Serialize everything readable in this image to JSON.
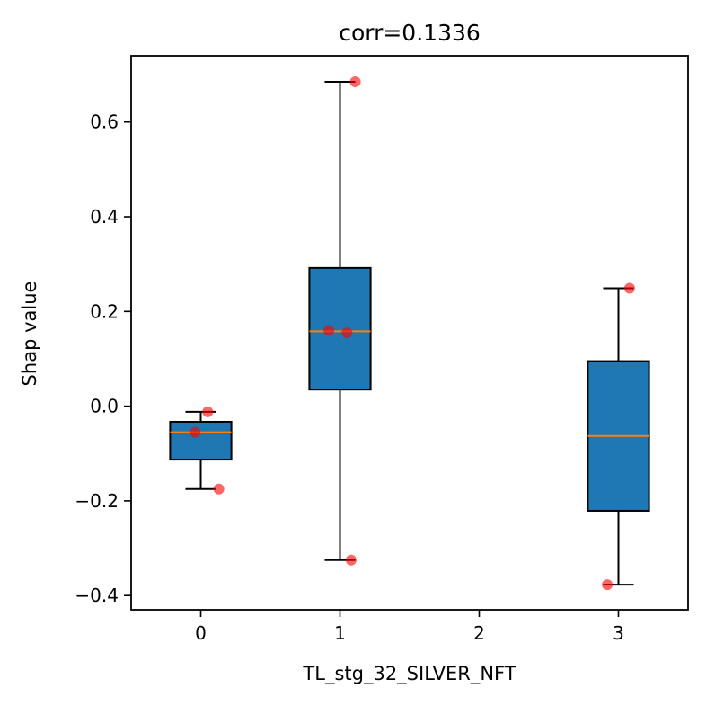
{
  "chart_data": {
    "type": "box",
    "title": "corr=0.1336",
    "xlabel": "TL_stg_32_SILVER_NFT",
    "ylabel": "Shap value",
    "xlim": [
      -0.5,
      3.5
    ],
    "ylim": [
      -0.43,
      0.74
    ],
    "xticks": [
      0,
      1,
      2,
      3
    ],
    "xtick_labels": [
      "0",
      "1",
      "2",
      "3"
    ],
    "yticks": [
      -0.4,
      -0.2,
      0.0,
      0.2,
      0.4,
      0.6
    ],
    "ytick_labels": [
      "−0.4",
      "−0.2",
      "0.0",
      "0.2",
      "0.4",
      "0.6"
    ],
    "box_color": "#1f77b4",
    "median_color": "#ff7f0e",
    "point_color": "#ff0000",
    "boxes": [
      {
        "x": 0,
        "whisker_low": -0.175,
        "q1": -0.113,
        "median": -0.055,
        "q3": -0.033,
        "whisker_high": -0.012
      },
      {
        "x": 1,
        "whisker_low": -0.325,
        "q1": 0.035,
        "median": 0.158,
        "q3": 0.292,
        "whisker_high": 0.685
      },
      {
        "x": 3,
        "whisker_low": -0.377,
        "q1": -0.221,
        "median": -0.063,
        "q3": 0.095,
        "whisker_high": 0.249
      }
    ],
    "points": [
      {
        "x": 0.05,
        "y": -0.012
      },
      {
        "x": -0.04,
        "y": -0.055
      },
      {
        "x": 0.13,
        "y": -0.175
      },
      {
        "x": 1.11,
        "y": 0.685
      },
      {
        "x": 0.92,
        "y": 0.16
      },
      {
        "x": 1.05,
        "y": 0.155
      },
      {
        "x": 1.08,
        "y": -0.325
      },
      {
        "x": 3.08,
        "y": 0.249
      },
      {
        "x": 2.92,
        "y": -0.377
      }
    ]
  }
}
